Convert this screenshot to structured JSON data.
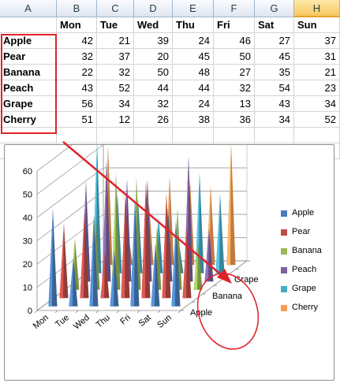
{
  "columns": [
    "A",
    "B",
    "C",
    "D",
    "E",
    "F",
    "G",
    "H"
  ],
  "selected_column": "H",
  "header_row": [
    "",
    "Mon",
    "Tue",
    "Wed",
    "Thu",
    "Fri",
    "Sat",
    "Sun"
  ],
  "rows": [
    {
      "name": "Apple",
      "values": [
        42,
        21,
        39,
        24,
        46,
        27,
        37
      ]
    },
    {
      "name": "Pear",
      "values": [
        32,
        37,
        20,
        45,
        50,
        45,
        31
      ]
    },
    {
      "name": "Banana",
      "values": [
        22,
        32,
        50,
        48,
        27,
        35,
        21
      ]
    },
    {
      "name": "Peach",
      "values": [
        43,
        52,
        44,
        44,
        32,
        54,
        23
      ]
    },
    {
      "name": "Grape",
      "values": [
        56,
        34,
        32,
        24,
        13,
        43,
        34
      ]
    },
    {
      "name": "Cherry",
      "values": [
        51,
        12,
        26,
        38,
        36,
        34,
        52
      ]
    }
  ],
  "chart_data": {
    "type": "3d-cone",
    "categories": [
      "Mon",
      "Tue",
      "Wed",
      "Thu",
      "Fri",
      "Sat",
      "Sun"
    ],
    "series": [
      {
        "name": "Apple",
        "values": [
          42,
          21,
          39,
          24,
          46,
          27,
          37
        ],
        "color": "#4a7ebb"
      },
      {
        "name": "Pear",
        "values": [
          32,
          37,
          20,
          45,
          50,
          45,
          31
        ],
        "color": "#be4b48"
      },
      {
        "name": "Banana",
        "values": [
          22,
          32,
          50,
          48,
          27,
          35,
          21
        ],
        "color": "#98b954"
      },
      {
        "name": "Peach",
        "values": [
          43,
          52,
          44,
          44,
          32,
          54,
          23
        ],
        "color": "#7d60a0"
      },
      {
        "name": "Grape",
        "values": [
          56,
          34,
          32,
          24,
          13,
          43,
          34
        ],
        "color": "#46aac5"
      },
      {
        "name": "Cherry",
        "values": [
          51,
          12,
          26,
          38,
          36,
          34,
          52
        ],
        "color": "#f59d56"
      }
    ],
    "depth_labels": [
      "Grape",
      "Banana",
      "Apple"
    ],
    "ylim": [
      0,
      60
    ],
    "yticks": [
      0,
      10,
      20,
      30,
      40,
      50,
      60
    ],
    "legend": "right",
    "grid": true
  },
  "annotations": {
    "highlight_color": "#e0232a"
  }
}
